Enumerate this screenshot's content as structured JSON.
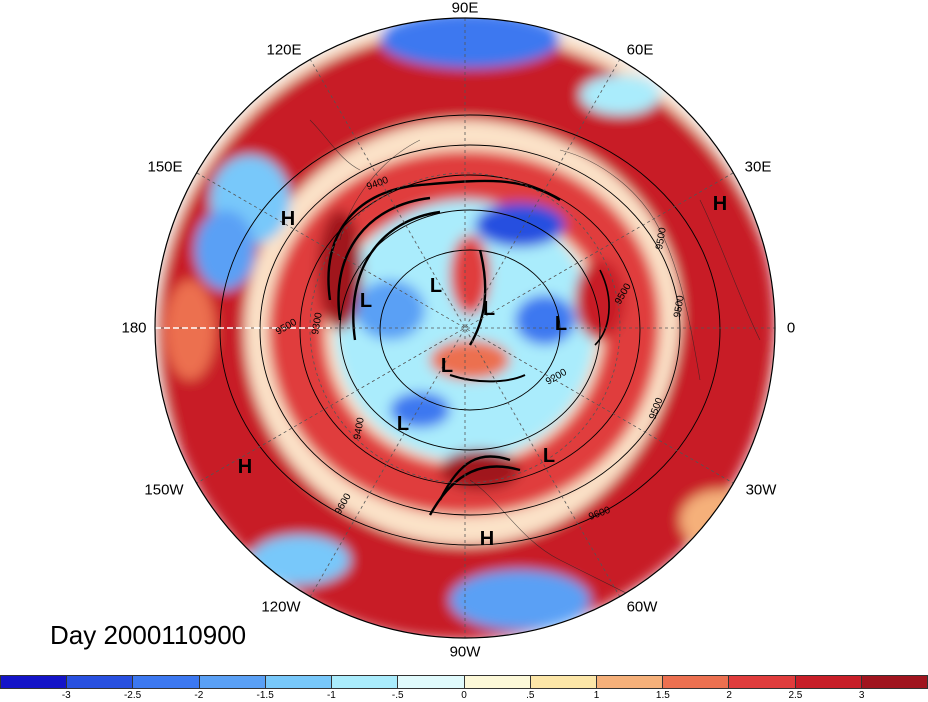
{
  "title": "Day 2000110900",
  "longitude_labels": {
    "e90": "90E",
    "e60": "60E",
    "e30": "30E",
    "e0": "0",
    "w30": "30W",
    "w60": "60W",
    "w90": "90W",
    "w120": "120W",
    "w150": "150W",
    "e180": "180",
    "e150": "150E",
    "e120": "120E"
  },
  "pressure_centers": [
    {
      "label": "H",
      "lon_label": "150E side"
    },
    {
      "label": "H",
      "lon_label": "30E side"
    },
    {
      "label": "H",
      "lon_label": "150W side"
    },
    {
      "label": "H",
      "lon_label": "90W side"
    },
    {
      "label": "L"
    },
    {
      "label": "L"
    },
    {
      "label": "L"
    },
    {
      "label": "L"
    },
    {
      "label": "L"
    },
    {
      "label": "L"
    },
    {
      "label": "L"
    }
  ],
  "contour_labels": [
    "9400",
    "9300",
    "9500",
    "9200",
    "9500",
    "9500",
    "9400",
    "9600",
    "9500",
    "9600",
    "9500"
  ],
  "colorbar": {
    "ticks": [
      "-3",
      "-2.5",
      "-2",
      "-1.5",
      "-1",
      "-.5",
      "0",
      ".5",
      "1",
      "1.5",
      "2",
      "2.5",
      "3"
    ],
    "colors": [
      "#1414c8",
      "#2850e0",
      "#3c78f0",
      "#5aa0f5",
      "#78c8fa",
      "#aaecfc",
      "#e0fafc",
      "#fcf8d8",
      "#fce6a8",
      "#f5b07a",
      "#ec7050",
      "#e03c3c",
      "#c81e28",
      "#a0141e"
    ]
  }
}
